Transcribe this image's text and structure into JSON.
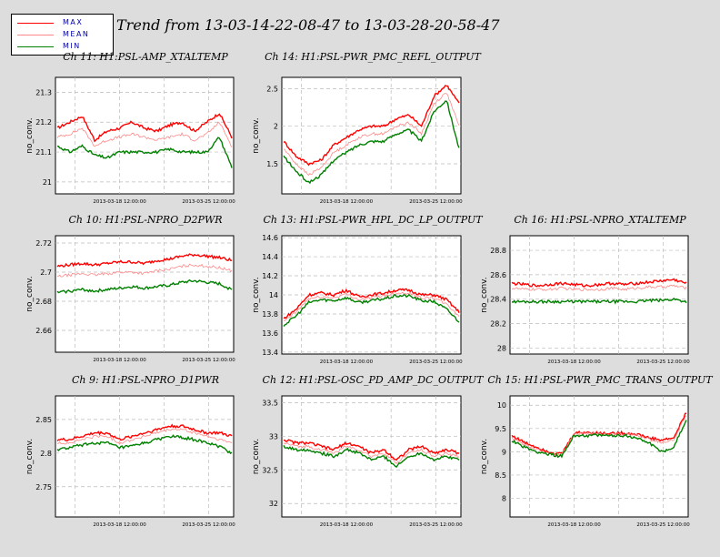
{
  "page_title": "Trend from 13-03-14-22-08-47 to 13-03-28-20-58-47",
  "legend": [
    {
      "label": "MAX",
      "color": "#ff0000"
    },
    {
      "label": "MEAN",
      "color": "#ff8888"
    },
    {
      "label": "MIN",
      "color": "#008000"
    }
  ],
  "colors": {
    "max": "#ff0000",
    "mean": "#ff8888",
    "min": "#008000",
    "background": "#dddddd",
    "plot": "#ffffff"
  },
  "chart_data": [
    {
      "type": "line",
      "title": "Ch 11: H1:PSL-AMP_XTALTEMP",
      "ylabel": "no_conv.",
      "ylim": [
        20.96,
        21.35
      ],
      "yticks": [
        "21",
        "21.1",
        "21.2",
        "21.3"
      ],
      "yvals": [
        21,
        21.1,
        21.2,
        21.3
      ],
      "xticks": [
        "2013-03-18 12:00:00",
        "2013-03-25 12:00:00"
      ],
      "grid": true,
      "series": [
        {
          "name": "MAX",
          "values": [
            21.18,
            21.2,
            21.22,
            21.14,
            21.17,
            21.18,
            21.2,
            21.18,
            21.17,
            21.19,
            21.2,
            21.17,
            21.2,
            21.23,
            21.15
          ]
        },
        {
          "name": "MEAN",
          "values": [
            21.15,
            21.16,
            21.18,
            21.12,
            21.14,
            21.15,
            21.16,
            21.15,
            21.14,
            21.15,
            21.16,
            21.14,
            21.16,
            21.2,
            21.12
          ]
        },
        {
          "name": "MIN",
          "values": [
            21.12,
            21.1,
            21.12,
            21.09,
            21.08,
            21.1,
            21.1,
            21.1,
            21.1,
            21.11,
            21.1,
            21.1,
            21.1,
            21.15,
            21.05
          ]
        }
      ]
    },
    {
      "type": "line",
      "title": "Ch 14: H1:PSL-PWR_PMC_REFL_OUTPUT",
      "ylabel": "no_conv.",
      "ylim": [
        1.1,
        2.65
      ],
      "yticks": [
        "1.5",
        "2",
        "2.5"
      ],
      "yvals": [
        1.5,
        2,
        2.5
      ],
      "xticks": [
        "2013-03-18 12:00:00",
        "2013-03-25 12:00:00"
      ],
      "grid": true,
      "series": [
        {
          "name": "MAX",
          "values": [
            1.8,
            1.6,
            1.5,
            1.55,
            1.75,
            1.85,
            1.95,
            2.0,
            2.0,
            2.1,
            2.15,
            2.0,
            2.4,
            2.55,
            2.3
          ]
        },
        {
          "name": "MEAN",
          "values": [
            1.7,
            1.5,
            1.35,
            1.45,
            1.65,
            1.75,
            1.85,
            1.9,
            1.9,
            2.0,
            2.05,
            1.9,
            2.3,
            2.45,
            2.0
          ]
        },
        {
          "name": "MIN",
          "values": [
            1.6,
            1.4,
            1.25,
            1.35,
            1.55,
            1.65,
            1.75,
            1.8,
            1.8,
            1.9,
            1.95,
            1.8,
            2.2,
            2.35,
            1.7
          ]
        }
      ]
    },
    {
      "type": "line",
      "title": "Ch 10: H1:PSL-NPRO_D2PWR",
      "ylabel": "no_conv.",
      "ylim": [
        2.645,
        2.725
      ],
      "yticks": [
        "2.66",
        "2.68",
        "2.7",
        "2.72"
      ],
      "yvals": [
        2.66,
        2.68,
        2.7,
        2.72
      ],
      "xticks": [
        "2013-03-18 12:00:00",
        "2013-03-25 12:00:00"
      ],
      "grid": true,
      "series": [
        {
          "name": "MAX",
          "values": [
            2.704,
            2.705,
            2.706,
            2.705,
            2.706,
            2.707,
            2.707,
            2.706,
            2.708,
            2.709,
            2.711,
            2.712,
            2.711,
            2.71,
            2.708
          ]
        },
        {
          "name": "MEAN",
          "values": [
            2.697,
            2.698,
            2.699,
            2.698,
            2.699,
            2.7,
            2.7,
            2.699,
            2.701,
            2.702,
            2.704,
            2.705,
            2.704,
            2.703,
            2.701
          ]
        },
        {
          "name": "MIN",
          "values": [
            2.686,
            2.687,
            2.688,
            2.687,
            2.688,
            2.689,
            2.69,
            2.689,
            2.69,
            2.691,
            2.693,
            2.694,
            2.693,
            2.692,
            2.688
          ]
        }
      ]
    },
    {
      "type": "line",
      "title": "Ch 13: H1:PSL-PWR_HPL_DC_LP_OUTPUT",
      "ylabel": "no_conv.",
      "ylim": [
        13.38,
        14.62
      ],
      "yticks": [
        "13.4",
        "13.6",
        "13.8",
        "14",
        "14.2",
        "14.4",
        "14.6"
      ],
      "yvals": [
        13.4,
        13.6,
        13.8,
        14,
        14.2,
        14.4,
        14.6
      ],
      "xticks": [
        "2013-03-18 12:00:00",
        "2013-03-25 12:00:00"
      ],
      "grid": true,
      "series": [
        {
          "name": "MAX",
          "values": [
            13.75,
            13.85,
            14.0,
            14.02,
            14.0,
            14.05,
            13.98,
            14.0,
            14.02,
            14.05,
            14.05,
            14.0,
            14.0,
            13.95,
            13.82
          ]
        },
        {
          "name": "MEAN",
          "values": [
            13.72,
            13.82,
            13.96,
            13.98,
            13.97,
            14.01,
            13.95,
            13.97,
            13.99,
            14.02,
            14.02,
            13.97,
            13.97,
            13.9,
            13.78
          ]
        },
        {
          "name": "MIN",
          "values": [
            13.68,
            13.78,
            13.92,
            13.95,
            13.94,
            13.97,
            13.92,
            13.94,
            13.96,
            13.99,
            13.99,
            13.94,
            13.93,
            13.85,
            13.72
          ]
        }
      ]
    },
    {
      "type": "line",
      "title": "Ch 16: H1:PSL-NPRO_XTALTEMP",
      "ylabel": "no_conv.",
      "ylim": [
        27.95,
        28.92
      ],
      "yticks": [
        "28",
        "28.2",
        "28.4",
        "28.6",
        "28.8"
      ],
      "yvals": [
        28,
        28.2,
        28.4,
        28.6,
        28.8
      ],
      "xticks": [
        "2013-03-18 12:00:00",
        "2013-03-25 12:00:00"
      ],
      "grid": true,
      "series": [
        {
          "name": "MAX",
          "values": [
            28.53,
            28.52,
            28.51,
            28.52,
            28.53,
            28.52,
            28.51,
            28.52,
            28.53,
            28.52,
            28.53,
            28.54,
            28.55,
            28.56,
            28.53
          ]
        },
        {
          "name": "MEAN",
          "values": [
            28.49,
            28.48,
            28.48,
            28.48,
            28.49,
            28.48,
            28.48,
            28.48,
            28.49,
            28.48,
            28.49,
            28.5,
            28.5,
            28.51,
            28.49
          ]
        },
        {
          "name": "MIN",
          "values": [
            28.38,
            28.38,
            28.38,
            28.38,
            28.38,
            28.38,
            28.38,
            28.38,
            28.38,
            28.38,
            28.38,
            28.39,
            28.39,
            28.4,
            28.38
          ]
        }
      ]
    },
    {
      "type": "line",
      "title": "Ch 9: H1:PSL-NPRO_D1PWR",
      "ylabel": "no_conv.",
      "ylim": [
        2.705,
        2.885
      ],
      "yticks": [
        "2.75",
        "2.8",
        "2.85"
      ],
      "yvals": [
        2.75,
        2.8,
        2.85
      ],
      "xticks": [
        "2013-03-18 12:00:00",
        "2013-03-25 12:00:00"
      ],
      "grid": true,
      "series": [
        {
          "name": "MAX",
          "values": [
            2.82,
            2.82,
            2.825,
            2.83,
            2.83,
            2.82,
            2.825,
            2.83,
            2.835,
            2.84,
            2.84,
            2.835,
            2.83,
            2.83,
            2.825
          ]
        },
        {
          "name": "MEAN",
          "values": [
            2.815,
            2.815,
            2.82,
            2.825,
            2.825,
            2.815,
            2.82,
            2.825,
            2.83,
            2.835,
            2.835,
            2.83,
            2.825,
            2.82,
            2.815
          ]
        },
        {
          "name": "MIN",
          "values": [
            2.805,
            2.808,
            2.812,
            2.815,
            2.815,
            2.808,
            2.81,
            2.815,
            2.82,
            2.825,
            2.823,
            2.82,
            2.815,
            2.81,
            2.8
          ]
        }
      ]
    },
    {
      "type": "line",
      "title": "Ch 12: H1:PSL-OSC_PD_AMP_DC_OUTPUT",
      "ylabel": "no_conv.",
      "ylim": [
        31.8,
        33.6
      ],
      "yticks": [
        "32",
        "32.5",
        "33",
        "33.5"
      ],
      "yvals": [
        32,
        32.5,
        33,
        33.5
      ],
      "xticks": [
        "2013-03-18 12:00:00",
        "2013-03-25 12:00:00"
      ],
      "grid": true,
      "series": [
        {
          "name": "MAX",
          "values": [
            32.95,
            32.9,
            32.9,
            32.85,
            32.8,
            32.9,
            32.85,
            32.75,
            32.8,
            32.65,
            32.8,
            32.85,
            32.75,
            32.8,
            32.75
          ]
        },
        {
          "name": "MEAN",
          "values": [
            32.9,
            32.85,
            32.85,
            32.8,
            32.75,
            32.85,
            32.8,
            32.7,
            32.75,
            32.6,
            32.75,
            32.8,
            32.7,
            32.75,
            32.7
          ]
        },
        {
          "name": "MIN",
          "values": [
            32.85,
            32.8,
            32.8,
            32.75,
            32.7,
            32.8,
            32.75,
            32.65,
            32.7,
            32.55,
            32.7,
            32.75,
            32.65,
            32.7,
            32.65
          ]
        }
      ]
    },
    {
      "type": "line",
      "title": "Ch 15: H1:PSL-PWR_PMC_TRANS_OUTPUT",
      "ylabel": "no_conv.",
      "ylim": [
        7.6,
        10.2
      ],
      "yticks": [
        "8",
        "8.5",
        "9",
        "9.5",
        "10"
      ],
      "yvals": [
        8,
        8.5,
        9,
        9.5,
        10
      ],
      "xticks": [
        "2013-03-18 12:00:00",
        "2013-03-25 12:00:00"
      ],
      "grid": true,
      "series": [
        {
          "name": "MAX",
          "values": [
            9.35,
            9.2,
            9.1,
            9.0,
            8.95,
            9.4,
            9.42,
            9.4,
            9.4,
            9.4,
            9.38,
            9.3,
            9.25,
            9.3,
            9.85
          ]
        },
        {
          "name": "MEAN",
          "values": [
            9.3,
            9.15,
            9.05,
            8.97,
            8.93,
            9.38,
            9.4,
            9.38,
            9.38,
            9.38,
            9.36,
            9.27,
            9.2,
            9.25,
            9.8
          ]
        },
        {
          "name": "MIN",
          "values": [
            9.25,
            9.1,
            9.0,
            8.95,
            8.9,
            9.35,
            9.35,
            9.35,
            9.35,
            9.35,
            9.3,
            9.2,
            9.0,
            9.1,
            9.7
          ]
        }
      ]
    }
  ]
}
